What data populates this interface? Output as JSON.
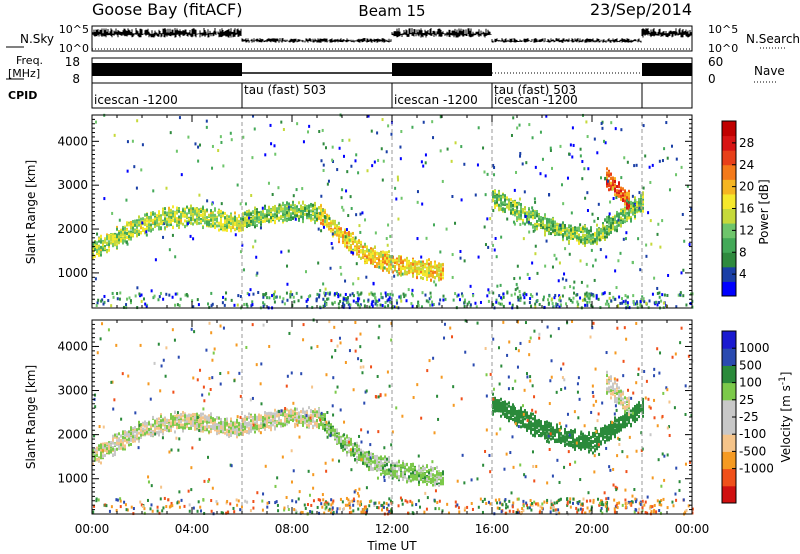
{
  "header": {
    "station": "Goose Bay (fitACF)",
    "beam": "Beam 15",
    "date": "23/Sep/2014"
  },
  "nsky_panel": {
    "left_label": "N.Sky",
    "left_ticks": [
      "10^5",
      "10^0"
    ],
    "right_ticks": [
      "10^5",
      "10^0"
    ],
    "right_label": "N.Search"
  },
  "freq_panel": {
    "left_label_top": "Freq.",
    "left_label_bottom": "[MHz]",
    "left_ticks": [
      "18",
      "8"
    ],
    "right_ticks": [
      "60",
      "0"
    ],
    "right_label": "Nave"
  },
  "cpid_panel": {
    "label": "CPID",
    "segments": [
      {
        "start_h": 0,
        "end_h": 6,
        "text": "icescan -1200",
        "row": "lower"
      },
      {
        "start_h": 6,
        "end_h": 12,
        "text": "tau (fast) 503",
        "row": "upper"
      },
      {
        "start_h": 12,
        "end_h": 16,
        "text": "icescan -1200",
        "row": "lower"
      },
      {
        "start_h": 16,
        "end_h": 22,
        "text": "tau (fast) 503",
        "row": "upper"
      },
      {
        "start_h": 16,
        "end_h": 22,
        "text": "icescan -1200",
        "row": "lower"
      },
      {
        "start_h": 22,
        "end_h": 24,
        "text": "",
        "row": "lower"
      }
    ]
  },
  "colors": {
    "power_scale": [
      "#0000ff",
      "#1a3fa6",
      "#2f8a3e",
      "#43a958",
      "#6ec56b",
      "#c6d93a",
      "#f5e82c",
      "#f5b522",
      "#f47a1a",
      "#e8401a",
      "#d81414",
      "#c00000"
    ],
    "velocity_scale": [
      "#d01010",
      "#f0501a",
      "#f59a22",
      "#f5c48a",
      "#c8c8c8",
      "#c8c8c8",
      "#7cc94a",
      "#2a8a3a",
      "#2a4ab0",
      "#1a1ad0"
    ]
  },
  "chart_data": [
    {
      "type": "heatmap",
      "name": "Power",
      "ylabel": "Slant Range [km]",
      "xlabel": "Time UT",
      "x_ticks": [
        "00:00",
        "04:00",
        "08:00",
        "12:00",
        "16:00",
        "20:00",
        "00:00"
      ],
      "y_ticks": [
        "1000",
        "2000",
        "3000",
        "4000"
      ],
      "xlim": [
        0,
        24
      ],
      "ylim": [
        200,
        4600
      ],
      "colorbar": {
        "label": "Power [dB]",
        "range": [
          0,
          32
        ],
        "ticks": [
          "4",
          "8",
          "12",
          "16",
          "20",
          "24",
          "28"
        ]
      },
      "structures": [
        {
          "t": [
            0.0,
            1.0,
            2.0,
            3.0,
            4.0,
            5.0,
            6.0
          ],
          "r": [
            1500,
            1800,
            2100,
            2250,
            2300,
            2200,
            2100
          ],
          "level": 14
        },
        {
          "t": [
            6.0,
            7.0,
            8.0,
            9.0
          ],
          "r": [
            2200,
            2300,
            2400,
            2350
          ],
          "level": 12
        },
        {
          "t": [
            9.0,
            10.0,
            11.0,
            12.0,
            13.0,
            14.0
          ],
          "r": [
            2400,
            1800,
            1400,
            1200,
            1100,
            1000
          ],
          "level": 18
        },
        {
          "t": [
            16.0,
            17.0,
            18.0,
            19.0,
            20.0,
            21.0,
            22.0
          ],
          "r": [
            2700,
            2400,
            2100,
            1900,
            1800,
            2200,
            2600
          ],
          "level": 12
        },
        {
          "t": [
            20.5,
            21.0,
            21.5
          ],
          "r": [
            3200,
            2900,
            2600
          ],
          "level": 24
        }
      ]
    },
    {
      "type": "heatmap",
      "name": "Velocity",
      "ylabel": "Slant Range [km]",
      "xlabel": "Time UT",
      "x_ticks": [
        "00:00",
        "04:00",
        "08:00",
        "12:00",
        "16:00",
        "20:00",
        "00:00"
      ],
      "y_ticks": [
        "1000",
        "2000",
        "3000",
        "4000"
      ],
      "xlim": [
        0,
        24
      ],
      "ylim": [
        200,
        4600
      ],
      "colorbar": {
        "label": "Velocity [m s^-1]",
        "ticks": [
          "1000",
          "500",
          "100",
          "25",
          "-25",
          "-100",
          "-500",
          "-1000"
        ]
      },
      "structures": [
        {
          "t": [
            0.0,
            1.0,
            2.0,
            3.0,
            4.0,
            5.0,
            6.0
          ],
          "r": [
            1500,
            1800,
            2100,
            2250,
            2300,
            2200,
            2100
          ],
          "level": 0
        },
        {
          "t": [
            6.0,
            7.0,
            8.0,
            9.0
          ],
          "r": [
            2200,
            2300,
            2400,
            2350
          ],
          "level": 0
        },
        {
          "t": [
            9.0,
            10.0,
            11.0,
            12.0,
            13.0,
            14.0
          ],
          "r": [
            2400,
            1800,
            1400,
            1200,
            1100,
            1000
          ],
          "level": 50
        },
        {
          "t": [
            16.0,
            17.0,
            18.0,
            19.0,
            20.0,
            21.0,
            22.0
          ],
          "r": [
            2700,
            2400,
            2100,
            1900,
            1800,
            2200,
            2600
          ],
          "level": 300
        },
        {
          "t": [
            20.5,
            21.0,
            21.5
          ],
          "r": [
            3200,
            2900,
            2600
          ],
          "level": 0
        }
      ]
    }
  ]
}
